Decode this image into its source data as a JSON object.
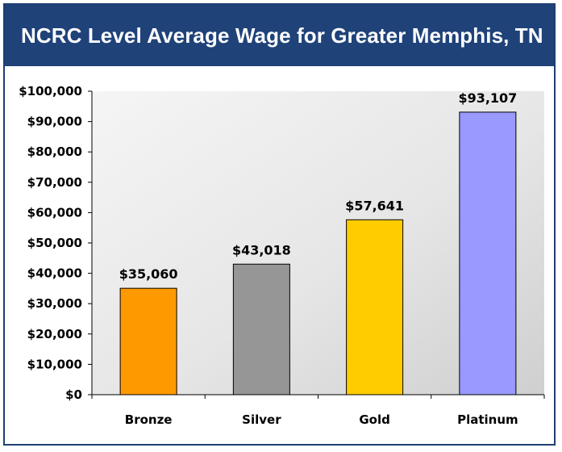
{
  "title": "NCRC Level Average Wage for Greater Memphis, TN",
  "colors": {
    "header_bg": "#1f4279",
    "frame_border": "#1f3f73",
    "bronze": "#ff9900",
    "silver": "#969696",
    "gold": "#ffcc00",
    "platinum": "#9999ff"
  },
  "chart_data": {
    "type": "bar",
    "title": "NCRC Level Average Wage for Greater Memphis, TN",
    "categories": [
      "Bronze",
      "Silver",
      "Gold",
      "Platinum"
    ],
    "values": [
      35060,
      43018,
      57641,
      93107
    ],
    "value_labels": [
      "$35,060",
      "$43,018",
      "$57,641",
      "$93,107"
    ],
    "bar_colors": [
      "#ff9900",
      "#969696",
      "#ffcc00",
      "#9999ff"
    ],
    "ylim": [
      0,
      100000
    ],
    "yticks": [
      0,
      10000,
      20000,
      30000,
      40000,
      50000,
      60000,
      70000,
      80000,
      90000,
      100000
    ],
    "ytick_labels": [
      "$0",
      "$10,000",
      "$20,000",
      "$30,000",
      "$40,000",
      "$50,000",
      "$60,000",
      "$70,000",
      "$80,000",
      "$90,000",
      "$100,000"
    ],
    "xlabel": "",
    "ylabel": "",
    "grid": false,
    "legend": "none"
  }
}
